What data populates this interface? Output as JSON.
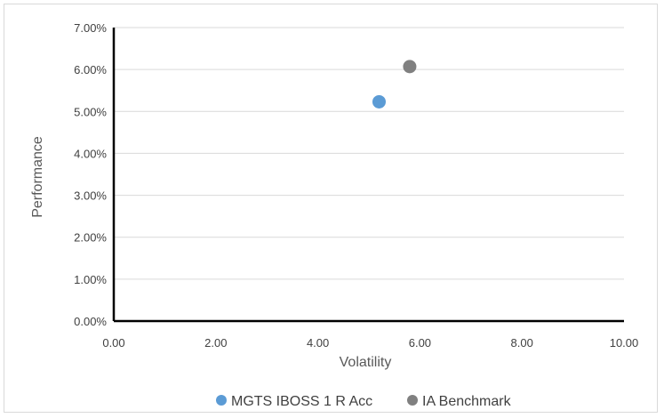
{
  "chart_data": {
    "type": "scatter",
    "title": "",
    "xlabel": "Volatility",
    "ylabel": "Performance",
    "xlim": [
      0,
      10
    ],
    "ylim": [
      0,
      0.07
    ],
    "x_ticks": [
      "0.00",
      "2.00",
      "4.00",
      "6.00",
      "8.00",
      "10.00"
    ],
    "y_ticks": [
      "0.00%",
      "1.00%",
      "2.00%",
      "3.00%",
      "4.00%",
      "5.00%",
      "6.00%",
      "7.00%"
    ],
    "grid": "horizontal",
    "legend_position": "bottom",
    "series": [
      {
        "name": "MGTS IBOSS 1 R Acc",
        "color": "#5B9BD5",
        "points": [
          {
            "x": 5.2,
            "y": 0.0523
          }
        ]
      },
      {
        "name": "IA Benchmark",
        "color": "#808080",
        "points": [
          {
            "x": 5.8,
            "y": 0.0607
          }
        ]
      }
    ]
  }
}
